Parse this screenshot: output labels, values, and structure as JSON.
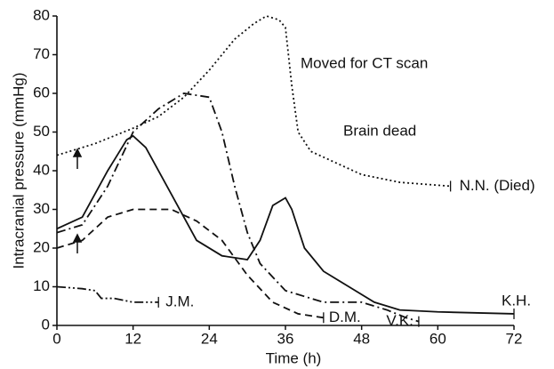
{
  "chart_data": {
    "type": "line",
    "xlabel": "Time (h)",
    "ylabel": "Intracranial pressure (mmHg)",
    "xlim": [
      0,
      72
    ],
    "xticks": [
      0,
      12,
      24,
      36,
      48,
      60,
      72
    ],
    "ylim": [
      0,
      80
    ],
    "yticks": [
      0,
      10,
      20,
      30,
      40,
      50,
      60,
      70,
      80
    ],
    "series": [
      {
        "name": "N.N. (Died)",
        "color": "#111",
        "dash": "2 3",
        "x": [
          0,
          6,
          12,
          16,
          20,
          24,
          28,
          31,
          33,
          35,
          36,
          37,
          38,
          40,
          44,
          48,
          54,
          62
        ],
        "values": [
          44,
          47,
          51,
          54,
          59,
          66,
          74,
          78,
          80,
          79,
          77,
          62,
          50,
          45,
          42,
          39,
          37,
          36
        ]
      },
      {
        "name": "K.H.",
        "color": "#111",
        "dash": "",
        "x": [
          0,
          4,
          8,
          11,
          12,
          14,
          18,
          22,
          26,
          30,
          32,
          34,
          36,
          37,
          39,
          42,
          46,
          50,
          54,
          60,
          72
        ],
        "values": [
          25,
          28,
          40,
          48,
          49,
          46,
          34,
          22,
          18,
          17,
          22,
          31,
          33,
          30,
          20,
          14,
          10,
          6,
          4,
          3.5,
          3
        ]
      },
      {
        "name": "D.M.",
        "color": "#111",
        "dash": "8 5",
        "x": [
          0,
          4,
          8,
          12,
          18,
          22,
          26,
          30,
          34,
          38,
          42
        ],
        "values": [
          20,
          22,
          28,
          30,
          30,
          27,
          22,
          13,
          6,
          3,
          2
        ]
      },
      {
        "name": "V.K.",
        "color": "#111",
        "dash": "10 4 2 4",
        "x": [
          0,
          4,
          8,
          12,
          16,
          20,
          24,
          26,
          28,
          30,
          32,
          36,
          42,
          48,
          52,
          55,
          57
        ],
        "values": [
          24,
          26,
          36,
          50,
          56,
          60,
          59,
          50,
          36,
          24,
          16,
          9,
          6,
          6,
          4,
          2,
          1
        ]
      },
      {
        "name": "J.M.",
        "color": "#111",
        "dash": "10 3 2 3 2 3",
        "x": [
          0,
          4,
          6,
          7,
          9,
          12,
          16
        ],
        "values": [
          10,
          9.5,
          9,
          7,
          7,
          6,
          6
        ]
      }
    ],
    "annotations": [
      "Moved for CT scan",
      "Brain dead"
    ]
  }
}
